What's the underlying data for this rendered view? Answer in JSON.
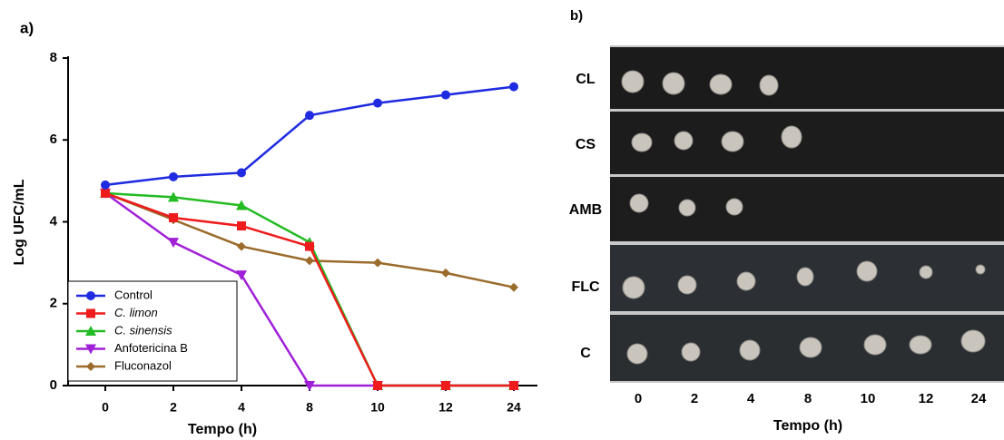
{
  "chart_data": {
    "type": "line",
    "panel_label": "a)",
    "x_label": "Tempo (h)",
    "y_label": "Log UFC/mL",
    "categories": [
      "0",
      "2",
      "4",
      "8",
      "10",
      "12",
      "24"
    ],
    "ylim": [
      0,
      8
    ],
    "yticks": [
      0,
      2,
      4,
      6,
      8
    ],
    "legend": "lower left",
    "series": [
      {
        "name": "Control",
        "color": "#1f2be0",
        "marker": "circle",
        "italic": false,
        "values": [
          4.9,
          5.1,
          5.2,
          6.6,
          6.9,
          7.1,
          7.3
        ]
      },
      {
        "name": "C. limon",
        "color": "#ee1c1c",
        "marker": "square",
        "italic": true,
        "values": [
          4.7,
          4.1,
          3.9,
          3.4,
          0,
          0,
          0
        ]
      },
      {
        "name": "C. sinensis",
        "color": "#22bb22",
        "marker": "triangle",
        "italic": true,
        "values": [
          4.7,
          4.6,
          4.4,
          3.5,
          0,
          0,
          0
        ]
      },
      {
        "name": "Anfotericina B",
        "color": "#a020d8",
        "marker": "triangle-down",
        "italic": false,
        "values": [
          4.7,
          3.5,
          2.7,
          0,
          0,
          0,
          0
        ]
      },
      {
        "name": "Fluconazol",
        "color": "#9a6b2a",
        "marker": "diamond",
        "italic": false,
        "values": [
          4.7,
          4.05,
          3.4,
          3.05,
          3.0,
          2.75,
          2.4
        ]
      }
    ]
  },
  "panel_b": {
    "label": "b)",
    "rows": [
      "CL",
      "CS",
      "AMB",
      "FLC",
      "C"
    ],
    "columns": [
      "0",
      "2",
      "4",
      "8",
      "10",
      "12",
      "24"
    ],
    "x_label": "Tempo (h)"
  }
}
